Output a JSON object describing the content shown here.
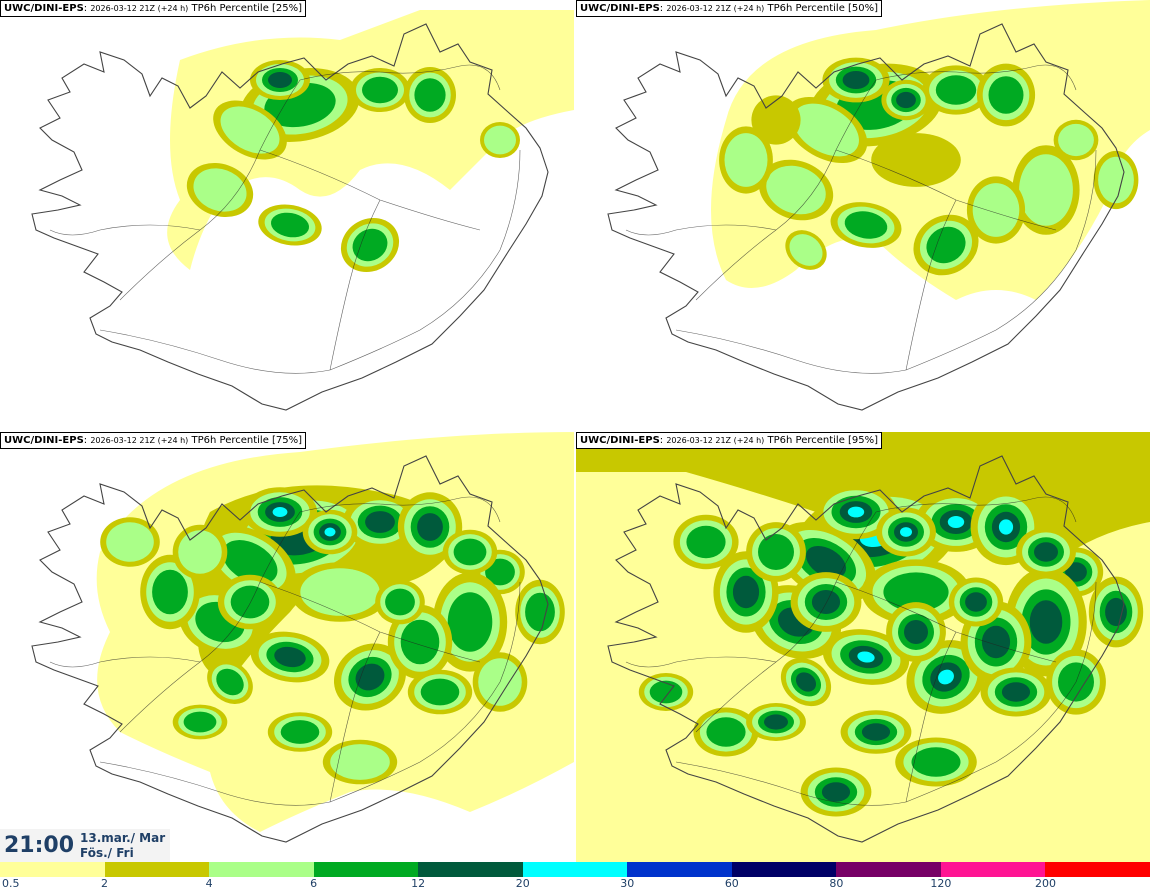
{
  "panels": [
    {
      "source": "UWC/DINI-EPS",
      "run": "2026-03-12 21Z (+24 h)",
      "label": "TP6h Percentile [25%]",
      "percentile": 25
    },
    {
      "source": "UWC/DINI-EPS",
      "run": "2026-03-12 21Z (+24 h)",
      "label": "TP6h Percentile [50%]",
      "percentile": 50
    },
    {
      "source": "UWC/DINI-EPS",
      "run": "2026-03-12 21Z (+24 h)",
      "label": "TP6h Percentile [75%]",
      "percentile": 75
    },
    {
      "source": "UWC/DINI-EPS",
      "run": "2026-03-12 21Z (+24 h)",
      "label": "TP6h Percentile [95%]",
      "percentile": 95
    }
  ],
  "valid_time": {
    "clock": "21:00",
    "date_line1": "13.mar./ Mar",
    "date_line2": "Fös./ Fri"
  },
  "colorbar": {
    "ticks": [
      "0.5",
      "2",
      "4",
      "6",
      "12",
      "20",
      "30",
      "60",
      "80",
      "120",
      "200"
    ],
    "colors": [
      "#ffff99",
      "#c8c800",
      "#aaff88",
      "#00aa22",
      "#005a3c",
      "#00ffff",
      "#0033cc",
      "#000066",
      "#770066",
      "#ff1493",
      "#ff0000"
    ]
  },
  "colors": {
    "coast": "#444444",
    "road": "#222222",
    "label_text": "#1f3f66"
  }
}
